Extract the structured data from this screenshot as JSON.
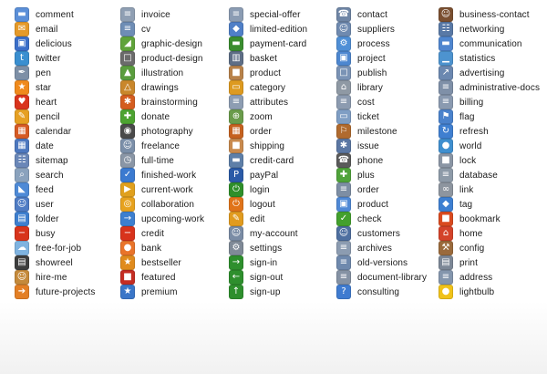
{
  "columns": [
    [
      {
        "label": "comment",
        "icon": "comment-icon",
        "color": "#5b8fd8",
        "glyph": "▬"
      },
      {
        "label": "email",
        "icon": "email-icon",
        "color": "#e59a2a",
        "glyph": "✉"
      },
      {
        "label": "delicious",
        "icon": "delicious-icon",
        "color": "#3b6fc9",
        "glyph": "▣"
      },
      {
        "label": "twitter",
        "icon": "twitter-icon",
        "color": "#3a8fd0",
        "glyph": "t"
      },
      {
        "label": "pen",
        "icon": "pen-icon",
        "color": "#7d8fa6",
        "glyph": "✒"
      },
      {
        "label": "star",
        "icon": "star-icon",
        "color": "#f08a1c",
        "glyph": "★"
      },
      {
        "label": "heart",
        "icon": "heart-icon",
        "color": "#d9341d",
        "glyph": "♥"
      },
      {
        "label": "pencil",
        "icon": "pencil-icon",
        "color": "#e6a023",
        "glyph": "✎"
      },
      {
        "label": "calendar",
        "icon": "calendar-icon",
        "color": "#d65a24",
        "glyph": "▦"
      },
      {
        "label": "date",
        "icon": "date-icon",
        "color": "#4d78bf",
        "glyph": "▦"
      },
      {
        "label": "sitemap",
        "icon": "sitemap-icon",
        "color": "#6a87b8",
        "glyph": "☷"
      },
      {
        "label": "search",
        "icon": "search-icon",
        "color": "#8aa2bd",
        "glyph": "⌕"
      },
      {
        "label": "feed",
        "icon": "feed-icon",
        "color": "#4e8ad6",
        "glyph": "◣"
      },
      {
        "label": "user",
        "icon": "user-icon",
        "color": "#4f7cc4",
        "glyph": "☺"
      },
      {
        "label": "folder",
        "icon": "folder-icon",
        "color": "#3e7fcf",
        "glyph": "▤"
      },
      {
        "label": "busy",
        "icon": "busy-icon",
        "color": "#d8341b",
        "glyph": "−"
      },
      {
        "label": "free-for-job",
        "icon": "free-for-job-icon",
        "color": "#7fb3e0",
        "glyph": "☁"
      },
      {
        "label": "showreel",
        "icon": "showreel-icon",
        "color": "#3e3e3e",
        "glyph": "▤"
      },
      {
        "label": "hire-me",
        "icon": "hire-me-icon",
        "color": "#c58a3b",
        "glyph": "☺"
      },
      {
        "label": "future-projects",
        "icon": "future-projects-icon",
        "color": "#e37f25",
        "glyph": "➔"
      }
    ],
    [
      {
        "label": "invoice",
        "icon": "invoice-icon",
        "color": "#8f9fb3",
        "glyph": "≡"
      },
      {
        "label": "cv",
        "icon": "cv-icon",
        "color": "#6e8db5",
        "glyph": "≡"
      },
      {
        "label": "graphic-design",
        "icon": "graphic-design-icon",
        "color": "#5fa33a",
        "glyph": "◢"
      },
      {
        "label": "product-design",
        "icon": "product-design-icon",
        "color": "#6b6b6b",
        "glyph": "□"
      },
      {
        "label": "illustration",
        "icon": "illustration-icon",
        "color": "#5a9d3e",
        "glyph": "▲"
      },
      {
        "label": "drawings",
        "icon": "drawings-icon",
        "color": "#c9872b",
        "glyph": "△"
      },
      {
        "label": "brainstorming",
        "icon": "brainstorming-icon",
        "color": "#d45d1f",
        "glyph": "✱"
      },
      {
        "label": "donate",
        "icon": "donate-icon",
        "color": "#4da331",
        "glyph": "✚"
      },
      {
        "label": "photography",
        "icon": "photography-icon",
        "color": "#4a4a4a",
        "glyph": "◉"
      },
      {
        "label": "freelance",
        "icon": "freelance-icon",
        "color": "#7b8fa9",
        "glyph": "☺"
      },
      {
        "label": "full-time",
        "icon": "full-time-icon",
        "color": "#8a96a6",
        "glyph": "◷"
      },
      {
        "label": "finished-work",
        "icon": "finished-work-icon",
        "color": "#3b7ad0",
        "glyph": "✓"
      },
      {
        "label": "current-work",
        "icon": "current-work-icon",
        "color": "#e0a01d",
        "glyph": "▶"
      },
      {
        "label": "collaboration",
        "icon": "collaboration-icon",
        "color": "#e7a21e",
        "glyph": "◎"
      },
      {
        "label": "upcoming-work",
        "icon": "upcoming-work-icon",
        "color": "#3d7fcf",
        "glyph": "→"
      },
      {
        "label": "credit",
        "icon": "credit-icon",
        "color": "#d8331c",
        "glyph": "−"
      },
      {
        "label": "bank",
        "icon": "bank-icon",
        "color": "#e9742a",
        "glyph": "●"
      },
      {
        "label": "bestseller",
        "icon": "bestseller-icon",
        "color": "#e08b1d",
        "glyph": "★"
      },
      {
        "label": "featured",
        "icon": "featured-icon",
        "color": "#c52d23",
        "glyph": "■"
      },
      {
        "label": "premium",
        "icon": "premium-icon",
        "color": "#3a76c8",
        "glyph": "★"
      }
    ],
    [
      {
        "label": "special-offer",
        "icon": "special-offer-icon",
        "color": "#8b9cb3",
        "glyph": "≡"
      },
      {
        "label": "limited-edition",
        "icon": "limited-edition-icon",
        "color": "#4f7fc7",
        "glyph": "◆"
      },
      {
        "label": "payment-card",
        "icon": "payment-card-icon",
        "color": "#3a8d2f",
        "glyph": "▬"
      },
      {
        "label": "basket",
        "icon": "basket-icon",
        "color": "#5e6e86",
        "glyph": "▥"
      },
      {
        "label": "product",
        "icon": "product-icon",
        "color": "#b8824a",
        "glyph": "■"
      },
      {
        "label": "category",
        "icon": "category-icon",
        "color": "#dd9a20",
        "glyph": "▭"
      },
      {
        "label": "attributes",
        "icon": "attributes-icon",
        "color": "#8d9db2",
        "glyph": "≡"
      },
      {
        "label": "zoom",
        "icon": "zoom-icon",
        "color": "#6a9c4b",
        "glyph": "⊕"
      },
      {
        "label": "order",
        "icon": "order-icon",
        "color": "#c5611f",
        "glyph": "▦"
      },
      {
        "label": "shipping",
        "icon": "shipping-icon",
        "color": "#c98a4e",
        "glyph": "■"
      },
      {
        "label": "credit-card",
        "icon": "credit-card-icon",
        "color": "#5e7fa8",
        "glyph": "▬"
      },
      {
        "label": "payPal",
        "icon": "paypal-icon",
        "color": "#2b5aa7",
        "glyph": "P"
      },
      {
        "label": "login",
        "icon": "login-icon",
        "color": "#2f8f2a",
        "glyph": "⏻"
      },
      {
        "label": "logout",
        "icon": "logout-icon",
        "color": "#e0731a",
        "glyph": "⏻"
      },
      {
        "label": "edit",
        "icon": "edit-icon",
        "color": "#e19b1f",
        "glyph": "✎"
      },
      {
        "label": "my-account",
        "icon": "my-account-icon",
        "color": "#7a8ca5",
        "glyph": "☺"
      },
      {
        "label": "settings",
        "icon": "settings-icon",
        "color": "#7f8a97",
        "glyph": "⚙"
      },
      {
        "label": "sign-in",
        "icon": "sign-in-icon",
        "color": "#2e8f2d",
        "glyph": "→"
      },
      {
        "label": "sign-out",
        "icon": "sign-out-icon",
        "color": "#2e8f2d",
        "glyph": "←"
      },
      {
        "label": "sign-up",
        "icon": "sign-up-icon",
        "color": "#2e8f2d",
        "glyph": "↑"
      }
    ],
    [
      {
        "label": "contact",
        "icon": "contact-icon",
        "color": "#6f86a6",
        "glyph": "☎"
      },
      {
        "label": "suppliers",
        "icon": "suppliers-icon",
        "color": "#6f8ab0",
        "glyph": "☺"
      },
      {
        "label": "process",
        "icon": "process-icon",
        "color": "#4f8fd6",
        "glyph": "⚙"
      },
      {
        "label": "project",
        "icon": "project-icon",
        "color": "#4d87d0",
        "glyph": "▣"
      },
      {
        "label": "publish",
        "icon": "publish-icon",
        "color": "#7a93b5",
        "glyph": "□"
      },
      {
        "label": "library",
        "icon": "library-icon",
        "color": "#8f99a4",
        "glyph": "⌂"
      },
      {
        "label": "cost",
        "icon": "cost-icon",
        "color": "#8c9bb0",
        "glyph": "≡"
      },
      {
        "label": "ticket",
        "icon": "ticket-icon",
        "color": "#7f9ec4",
        "glyph": "▭"
      },
      {
        "label": "milestone",
        "icon": "milestone-icon",
        "color": "#b06a2e",
        "glyph": "⚐"
      },
      {
        "label": "issue",
        "icon": "issue-icon",
        "color": "#5b77a3",
        "glyph": "✱"
      },
      {
        "label": "phone",
        "icon": "phone-icon",
        "color": "#5a5a5a",
        "glyph": "☎"
      },
      {
        "label": "plus",
        "icon": "plus-icon",
        "color": "#4fa33a",
        "glyph": "✚"
      },
      {
        "label": "order",
        "icon": "order-icon-2",
        "color": "#7d8ea4",
        "glyph": "≡"
      },
      {
        "label": "product",
        "icon": "product-icon-2",
        "color": "#4f89d6",
        "glyph": "▣"
      },
      {
        "label": "check",
        "icon": "check-icon",
        "color": "#43a02d",
        "glyph": "✓"
      },
      {
        "label": "customers",
        "icon": "customers-icon",
        "color": "#4e6fa0",
        "glyph": "☺"
      },
      {
        "label": "archives",
        "icon": "archives-icon",
        "color": "#8c9cb1",
        "glyph": "≡"
      },
      {
        "label": "old-versions",
        "icon": "old-versions-icon",
        "color": "#6f89ad",
        "glyph": "≡"
      },
      {
        "label": "document-library",
        "icon": "document-library-icon",
        "color": "#8592a4",
        "glyph": "≡"
      },
      {
        "label": "consulting",
        "icon": "consulting-icon",
        "color": "#3f7bd0",
        "glyph": "?"
      }
    ],
    [
      {
        "label": "business-contact",
        "icon": "business-contact-icon",
        "color": "#7a4f30",
        "glyph": "☺"
      },
      {
        "label": "networking",
        "icon": "networking-icon",
        "color": "#5979a6",
        "glyph": "☷"
      },
      {
        "label": "communication",
        "icon": "communication-icon",
        "color": "#4f86cf",
        "glyph": "▬"
      },
      {
        "label": "statistics",
        "icon": "statistics-icon",
        "color": "#4d93cf",
        "glyph": "▁"
      },
      {
        "label": "advertising",
        "icon": "advertising-icon",
        "color": "#6b88b0",
        "glyph": "↗"
      },
      {
        "label": "administrative-docs",
        "icon": "administrative-docs-icon",
        "color": "#7f90a8",
        "glyph": "≡"
      },
      {
        "label": "billing",
        "icon": "billing-icon",
        "color": "#8a9ab0",
        "glyph": "≡"
      },
      {
        "label": "flag",
        "icon": "flag-icon",
        "color": "#4a82cc",
        "glyph": "⚑"
      },
      {
        "label": "refresh",
        "icon": "refresh-icon",
        "color": "#3f7fd0",
        "glyph": "↻"
      },
      {
        "label": "world",
        "icon": "world-icon",
        "color": "#3f8fcf",
        "glyph": "●"
      },
      {
        "label": "lock",
        "icon": "lock-icon",
        "color": "#8a95a4",
        "glyph": "■"
      },
      {
        "label": "database",
        "icon": "database-icon",
        "color": "#8d9aa8",
        "glyph": "≡"
      },
      {
        "label": "link",
        "icon": "link-icon",
        "color": "#8d959f",
        "glyph": "∞"
      },
      {
        "label": "tag",
        "icon": "tag-icon",
        "color": "#3d7fd1",
        "glyph": "◆"
      },
      {
        "label": "bookmark",
        "icon": "bookmark-icon",
        "color": "#d94a1f",
        "glyph": "■"
      },
      {
        "label": "home",
        "icon": "home-icon",
        "color": "#d3432a",
        "glyph": "⌂"
      },
      {
        "label": "config",
        "icon": "config-icon",
        "color": "#9a6a3c",
        "glyph": "⚒"
      },
      {
        "label": "print",
        "icon": "print-icon",
        "color": "#7c8796",
        "glyph": "▤"
      },
      {
        "label": "address",
        "icon": "address-icon",
        "color": "#8496ad",
        "glyph": "≡"
      },
      {
        "label": "lightbulb",
        "icon": "lightbulb-icon",
        "color": "#f0c21a",
        "glyph": "●"
      }
    ]
  ]
}
